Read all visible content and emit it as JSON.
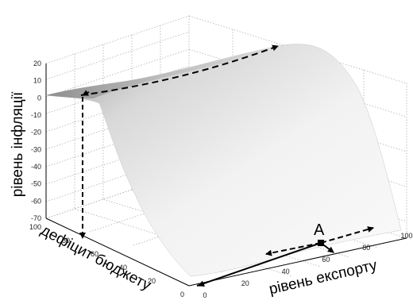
{
  "chart_data": {
    "type": "surface3d",
    "title": "",
    "zlabel": "рівень інфляції",
    "ylabel": "дефіцит бюджету",
    "xlabel": "рівень експорту",
    "z_ticks": [
      "20",
      "10",
      "0",
      "-10",
      "-20",
      "-30",
      "-40",
      "-50",
      "-60",
      "-70"
    ],
    "y_ticks": [
      "100",
      "80",
      "60",
      "40",
      "20",
      "0"
    ],
    "x_ticks": [
      "0",
      "20",
      "40",
      "60",
      "80",
      "100"
    ],
    "zlim": [
      -70,
      20
    ],
    "ylim": [
      0,
      100
    ],
    "xlim": [
      0,
      100
    ],
    "grid": true,
    "surface": {
      "description_values": [
        {
          "x": 100,
          "y": 100,
          "z": 12
        },
        {
          "x": 0,
          "y": 100,
          "z": 0
        },
        {
          "x": 0,
          "y": 0,
          "z": -70
        },
        {
          "x": 100,
          "y": 0,
          "z": -50
        }
      ]
    },
    "annotations": [
      {
        "label": "A",
        "x": 60,
        "y": 0,
        "z": -55
      }
    ]
  }
}
